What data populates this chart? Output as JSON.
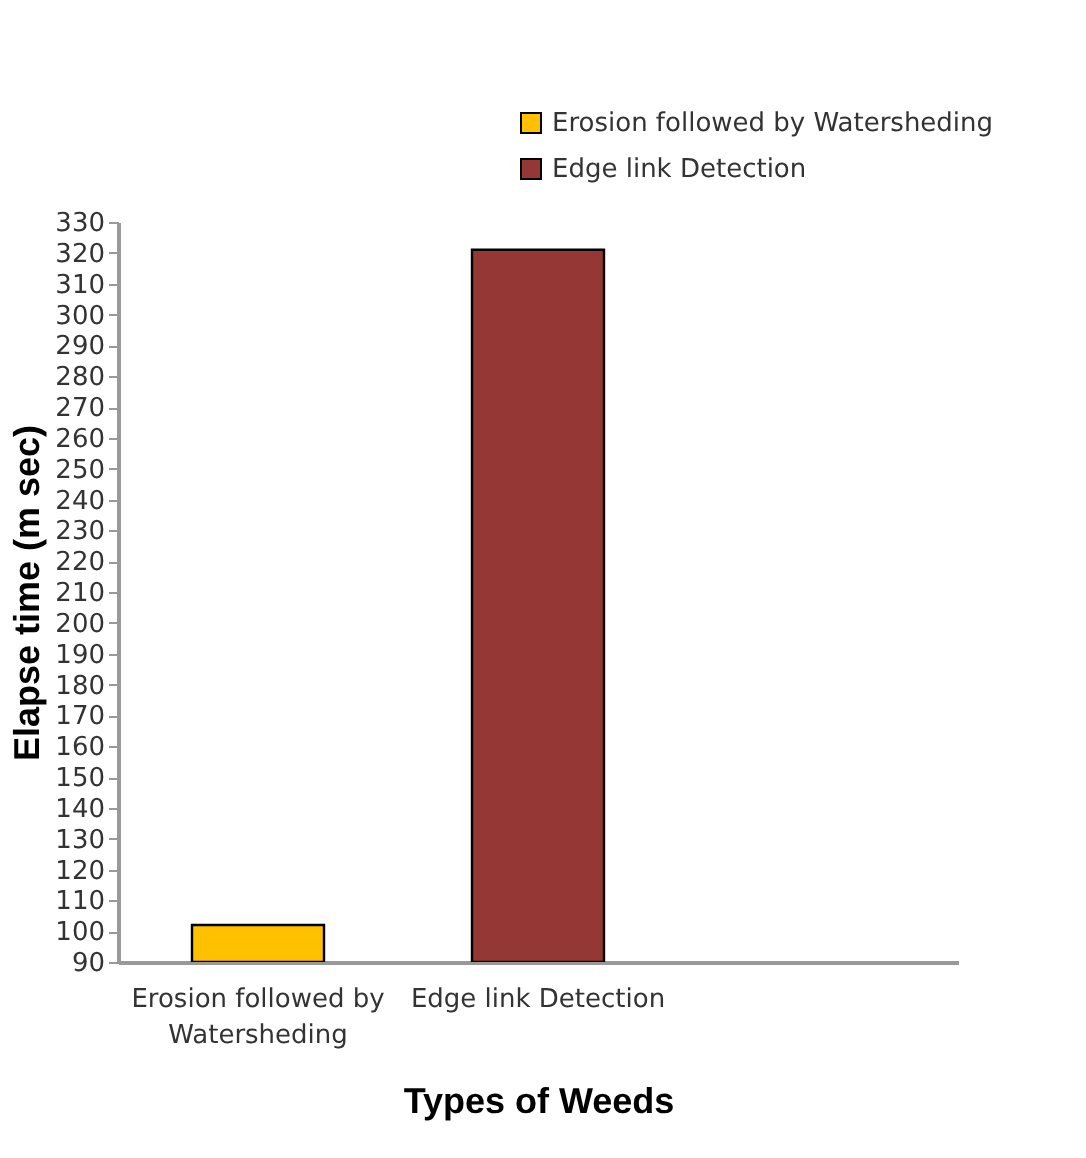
{
  "chart_data": {
    "type": "bar",
    "xlabel": "Types of Weeds",
    "ylabel": "Elapse time (m sec)",
    "categories": [
      "Erosion followed by Watersheding",
      "Edge link Detection",
      null
    ],
    "series": [
      {
        "name": "Erosion followed by Watersheding",
        "color": "#ffc000",
        "values": [
          102,
          null,
          null
        ]
      },
      {
        "name": "Edge link Detection",
        "color": "#953735",
        "values": [
          null,
          321,
          null
        ]
      }
    ],
    "ylim": [
      90,
      330
    ],
    "yticks": [
      90,
      100,
      110,
      120,
      130,
      140,
      150,
      160,
      170,
      180,
      190,
      200,
      210,
      220,
      230,
      240,
      250,
      260,
      270,
      280,
      290,
      300,
      310,
      320,
      330
    ],
    "grid": false,
    "legend": "top right"
  }
}
